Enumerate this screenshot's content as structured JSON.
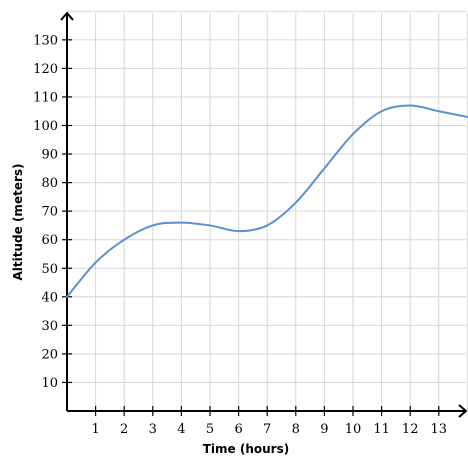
{
  "chart_data": {
    "type": "line",
    "title": "",
    "xlabel": "Time (hours)",
    "ylabel": "Altitude (meters)",
    "xlim": [
      0,
      14
    ],
    "ylim": [
      0,
      140
    ],
    "x_ticks": [
      1,
      2,
      3,
      4,
      5,
      6,
      7,
      8,
      9,
      10,
      11,
      12,
      13
    ],
    "y_ticks": [
      10,
      20,
      30,
      40,
      50,
      60,
      70,
      80,
      90,
      100,
      110,
      120,
      130
    ],
    "grid": true,
    "legend": "none",
    "series": [
      {
        "color": "#5b8fd6",
        "x": [
          0,
          1,
          2,
          3,
          4,
          5,
          6,
          7,
          8,
          9,
          10,
          11,
          12,
          13,
          14
        ],
        "y": [
          40,
          52,
          60,
          65,
          66,
          65,
          63,
          65,
          73,
          85,
          97,
          105,
          107,
          105,
          103
        ]
      }
    ]
  }
}
